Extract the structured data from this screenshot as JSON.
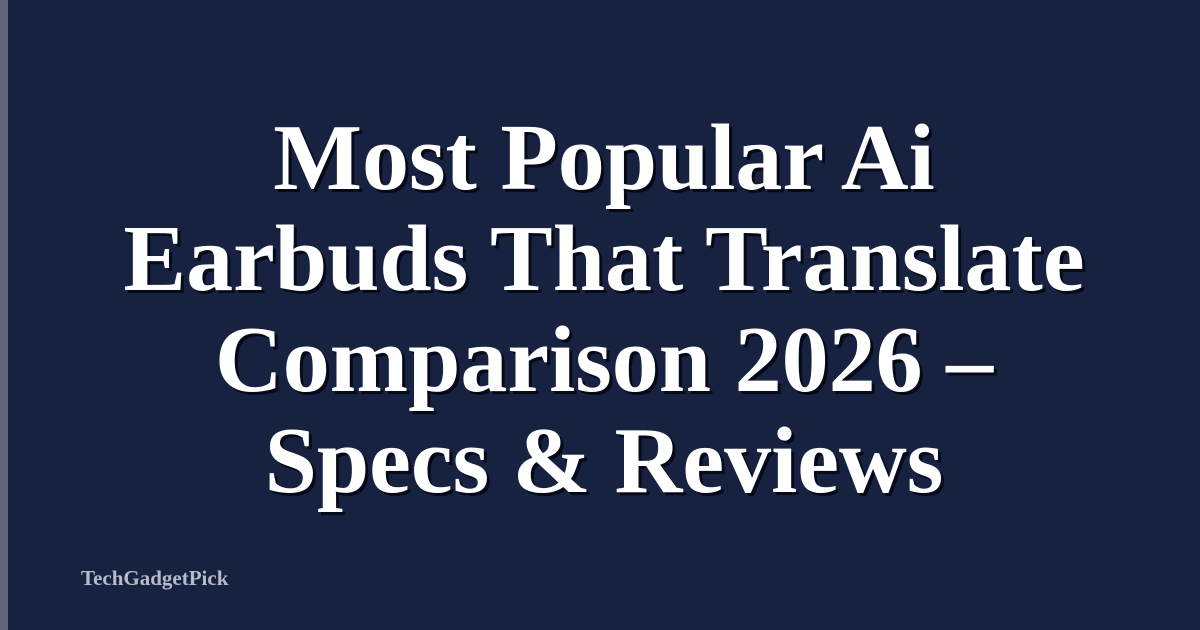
{
  "title": {
    "lines": [
      "Most Popular Ai",
      "Earbuds That Translate",
      "Comparison 2026 –",
      "Specs & Reviews"
    ]
  },
  "brand": "TechGadgetPick",
  "colors": {
    "background": "#172240",
    "accent_bar": "#5d6579",
    "title": "#ffffff",
    "brand": "#b5bbc8"
  }
}
